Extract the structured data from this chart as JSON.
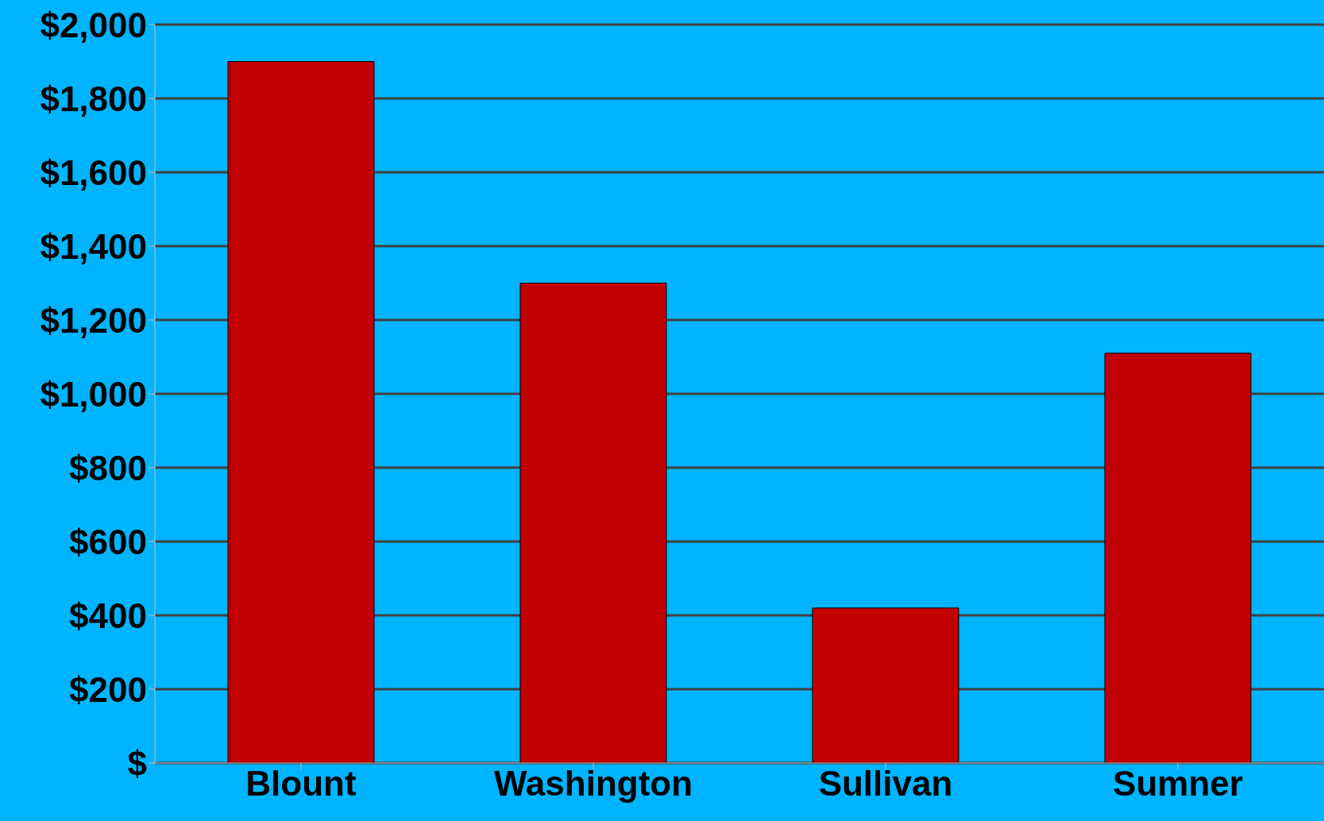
{
  "chart_data": {
    "type": "bar",
    "categories": [
      "Blount",
      "Washington",
      "Sullivan",
      "Sumner"
    ],
    "values": [
      1900,
      1300,
      420,
      1110
    ],
    "color": "#c00000",
    "ylim": [
      0,
      2000
    ],
    "yticks": [
      {
        "value": 0,
        "label": "$"
      },
      {
        "value": 200,
        "label": "$200"
      },
      {
        "value": 400,
        "label": "$400"
      },
      {
        "value": 600,
        "label": "$600"
      },
      {
        "value": 800,
        "label": "$800"
      },
      {
        "value": 1000,
        "label": "$1,000"
      },
      {
        "value": 1200,
        "label": "$1,200"
      },
      {
        "value": 1400,
        "label": "$1,400"
      },
      {
        "value": 1600,
        "label": "$1,600"
      },
      {
        "value": 1800,
        "label": "$1,800"
      },
      {
        "value": 2000,
        "label": "$2,000"
      }
    ],
    "grid": "y"
  }
}
